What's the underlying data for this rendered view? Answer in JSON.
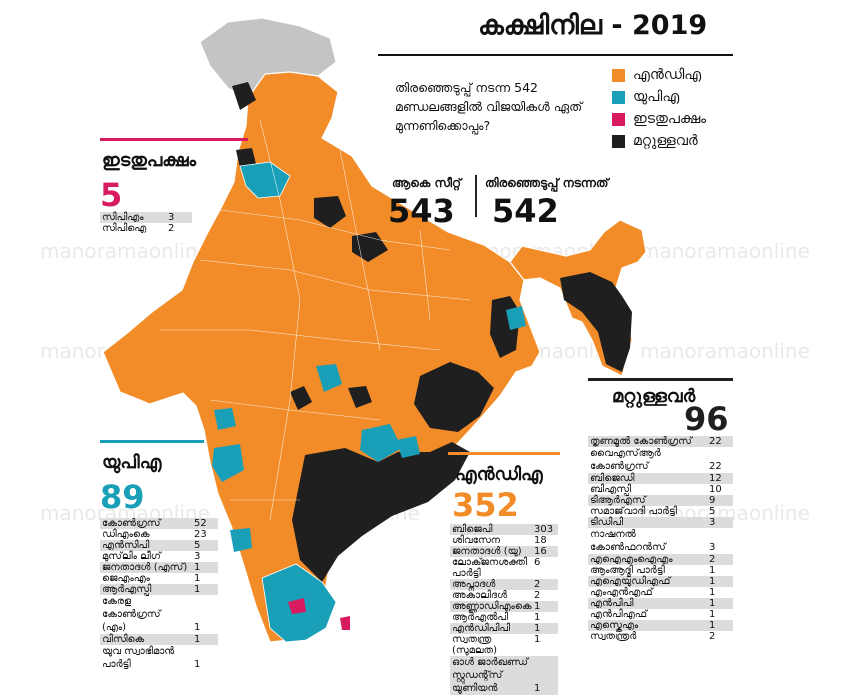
{
  "title": "കക്ഷിനില - 2019",
  "subtitle": "തിരഞ്ഞെടുപ്പ് നടന്ന 542 മണ്ഡലങ്ങളിൽ വിജയികൾ ഏത് മുന്നണിക്കൊപ്പം?",
  "legend": [
    {
      "label": "എൻഡിഎ",
      "color": "#f28c28"
    },
    {
      "label": "യുപിഎ",
      "color": "#1a9fb8"
    },
    {
      "label": "ഇടതുപക്ഷം",
      "color": "#d81b60"
    },
    {
      "label": "മറ്റുള്ളവർ",
      "color": "#1f1f1f"
    }
  ],
  "seats": {
    "total_label": "ആകെ സീറ്റ്",
    "total": "543",
    "contested_label": "തിരഞ്ഞെടുപ്പ് നടന്നത്",
    "contested": "542"
  },
  "left": {
    "title": "ഇടതുപക്ഷം",
    "total": "5",
    "color": "#d81b60",
    "rows": [
      {
        "party": "സിപിഎം",
        "seats": "3"
      },
      {
        "party": "സിപിഐ",
        "seats": "2"
      }
    ]
  },
  "upa": {
    "title": "യുപിഎ",
    "total": "89",
    "color": "#1a9fb8",
    "rows": [
      {
        "party": "കോൺഗ്രസ്",
        "seats": "52"
      },
      {
        "party": "ഡിഎംകെ",
        "seats": "23"
      },
      {
        "party": "എൻസിപി",
        "seats": "5"
      },
      {
        "party": "മുസ്‌ലിം ലീഗ്",
        "seats": "3"
      },
      {
        "party": "ജനതാദൾ (എസ്)",
        "seats": "1"
      },
      {
        "party": "ജെഎംഎം",
        "seats": "1"
      },
      {
        "party": "ആർഎസ്പി",
        "seats": "1"
      },
      {
        "party": "കേരള കോൺഗ്രസ് (എം)",
        "seats": "1"
      },
      {
        "party": "വിസികെ",
        "seats": "1"
      },
      {
        "party": "യുവ സ്വാഭിമാൻ പാർട്ടി",
        "seats": "1"
      }
    ]
  },
  "nda": {
    "title": "എൻഡിഎ",
    "total": "352",
    "color": "#f28c28",
    "rows": [
      {
        "party": "ബിജെപി",
        "seats": "303"
      },
      {
        "party": "ശിവസേന",
        "seats": "18"
      },
      {
        "party": "ജനതാദൾ (യു)",
        "seats": "16"
      },
      {
        "party": "ലോക്ജനശക്തി പാർട്ടി",
        "seats": "6"
      },
      {
        "party": "അപ്നാദൾ",
        "seats": "2"
      },
      {
        "party": "അകാലിദൾ",
        "seats": "2"
      },
      {
        "party": "അണ്ണാഡിഎംകെ",
        "seats": "1"
      },
      {
        "party": "ആർഎൽപി",
        "seats": "1"
      },
      {
        "party": "എൻഡിപിപി",
        "seats": "1"
      },
      {
        "party": "സ്വതന്ത്ര (സുമലത)",
        "seats": "1"
      },
      {
        "party": "ഓൾ ജാർഖണ്ഡ് സ്റ്റുഡന്റ്സ് യൂണിയൻ",
        "seats": "1"
      }
    ]
  },
  "others": {
    "title": "മറ്റുള്ളവർ",
    "total": "96",
    "color": "#1f1f1f",
    "rows": [
      {
        "party": "തൃണമൂൽ കോൺഗ്രസ്",
        "seats": "22"
      },
      {
        "party": "വൈഎസ്ആർ കോൺഗ്രസ്",
        "seats": "22"
      },
      {
        "party": "ബിജെഡി",
        "seats": "12"
      },
      {
        "party": "ബിഎസ്പി",
        "seats": "10"
      },
      {
        "party": "ടിആർഎസ്",
        "seats": "9"
      },
      {
        "party": "സമാജ്‌വാദി പാർട്ടി",
        "seats": "5"
      },
      {
        "party": "ടിഡിപി",
        "seats": "3"
      },
      {
        "party": "നാഷനൽ കോൺഫറൻസ്",
        "seats": "3"
      },
      {
        "party": "എഐഎംഐഎം",
        "seats": "2"
      },
      {
        "party": "ആംആദ്മി പാർട്ടി",
        "seats": "1"
      },
      {
        "party": "എഐയുഡിഎഫ്",
        "seats": "1"
      },
      {
        "party": "എംഎൻഎഫ്",
        "seats": "1"
      },
      {
        "party": "എൻപിപി",
        "seats": "1"
      },
      {
        "party": "എൻപിഎഫ്",
        "seats": "1"
      },
      {
        "party": "എസ്കെഎം",
        "seats": "1"
      },
      {
        "party": "സ്വതന്ത്രർ",
        "seats": "2"
      }
    ]
  },
  "watermark": "manoramaonline"
}
